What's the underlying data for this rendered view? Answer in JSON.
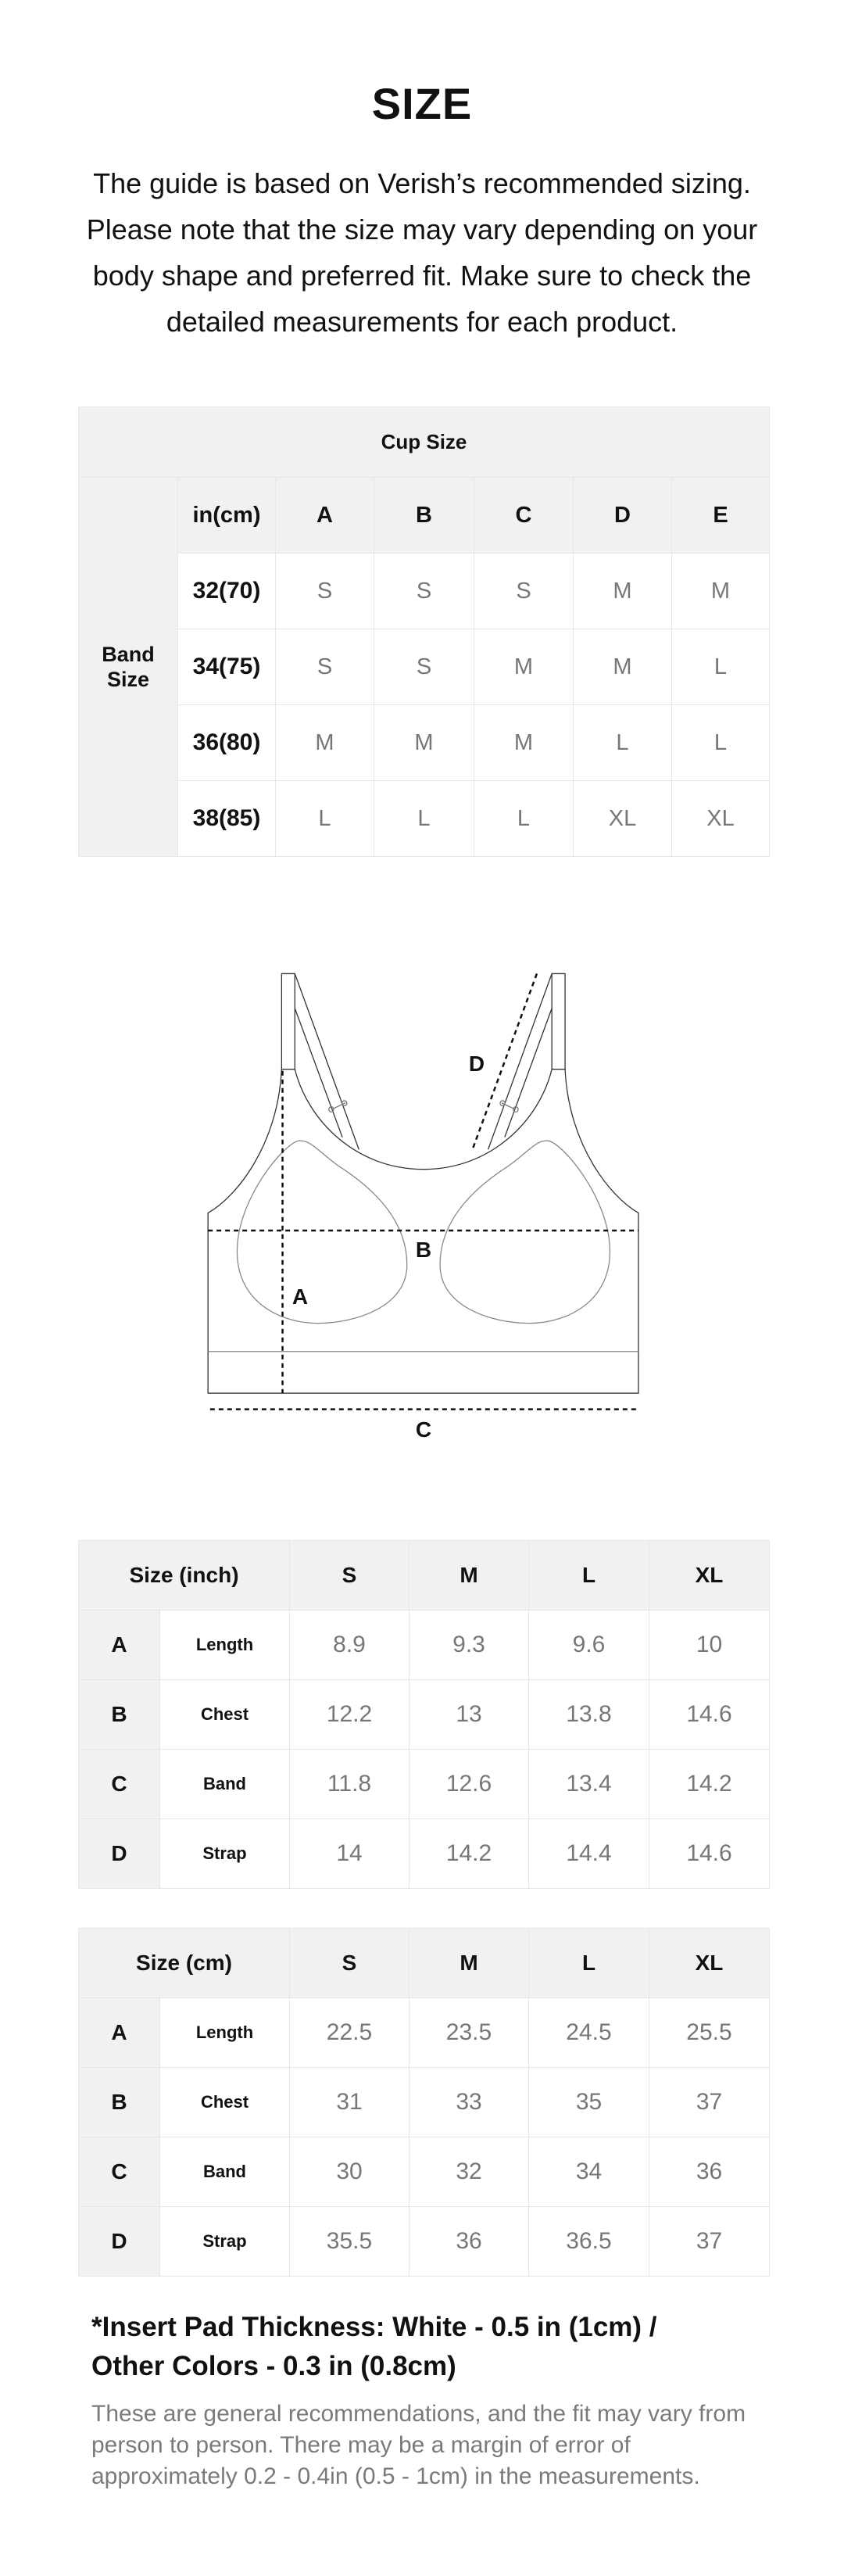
{
  "title": "SIZE",
  "intro": "The guide is based on Verish’s recommended sizing. Please note that the size may vary depending on your body shape and preferred fit. Make sure to check the detailed measurements for each product.",
  "cup_table": {
    "title": "Cup Size",
    "band_label": "Band Size",
    "unit_header": "in(cm)",
    "cups": [
      "A",
      "B",
      "C",
      "D",
      "E"
    ],
    "rows": [
      {
        "band": "32(70)",
        "sizes": [
          "S",
          "S",
          "S",
          "M",
          "M"
        ]
      },
      {
        "band": "34(75)",
        "sizes": [
          "S",
          "S",
          "M",
          "M",
          "L"
        ]
      },
      {
        "band": "36(80)",
        "sizes": [
          "M",
          "M",
          "M",
          "L",
          "L"
        ]
      },
      {
        "band": "38(85)",
        "sizes": [
          "L",
          "L",
          "L",
          "XL",
          "XL"
        ]
      }
    ]
  },
  "diagram": {
    "labels": {
      "a": "A",
      "b": "B",
      "c": "C",
      "d": "D"
    }
  },
  "inch_table": {
    "header": "Size (inch)",
    "sizes": [
      "S",
      "M",
      "L",
      "XL"
    ],
    "rows": [
      {
        "letter": "A",
        "name": "Length",
        "values": [
          "8.9",
          "9.3",
          "9.6",
          "10"
        ]
      },
      {
        "letter": "B",
        "name": "Chest",
        "values": [
          "12.2",
          "13",
          "13.8",
          "14.6"
        ]
      },
      {
        "letter": "C",
        "name": "Band",
        "values": [
          "11.8",
          "12.6",
          "13.4",
          "14.2"
        ]
      },
      {
        "letter": "D",
        "name": "Strap",
        "values": [
          "14",
          "14.2",
          "14.4",
          "14.6"
        ]
      }
    ]
  },
  "cm_table": {
    "header": "Size (cm)",
    "sizes": [
      "S",
      "M",
      "L",
      "XL"
    ],
    "rows": [
      {
        "letter": "A",
        "name": "Length",
        "values": [
          "22.5",
          "23.5",
          "24.5",
          "25.5"
        ]
      },
      {
        "letter": "B",
        "name": "Chest",
        "values": [
          "31",
          "33",
          "35",
          "37"
        ]
      },
      {
        "letter": "C",
        "name": "Band",
        "values": [
          "30",
          "32",
          "34",
          "36"
        ]
      },
      {
        "letter": "D",
        "name": "Strap",
        "values": [
          "35.5",
          "36",
          "36.5",
          "37"
        ]
      }
    ]
  },
  "note": {
    "heading_line1": "*Insert Pad Thickness:  White - 0.5 in (1cm) /",
    "heading_line2": "Other Colors - 0.3 in (0.8cm)",
    "text": "These are general recommendations, and the fit may vary from person to person. There may be a margin of error of approximately 0.2 - 0.4in (0.5 - 1cm) in the measurements."
  },
  "colors": {
    "header_bg": "#f2f1ef",
    "border": "#e6e6e6",
    "value_text": "#777777"
  }
}
